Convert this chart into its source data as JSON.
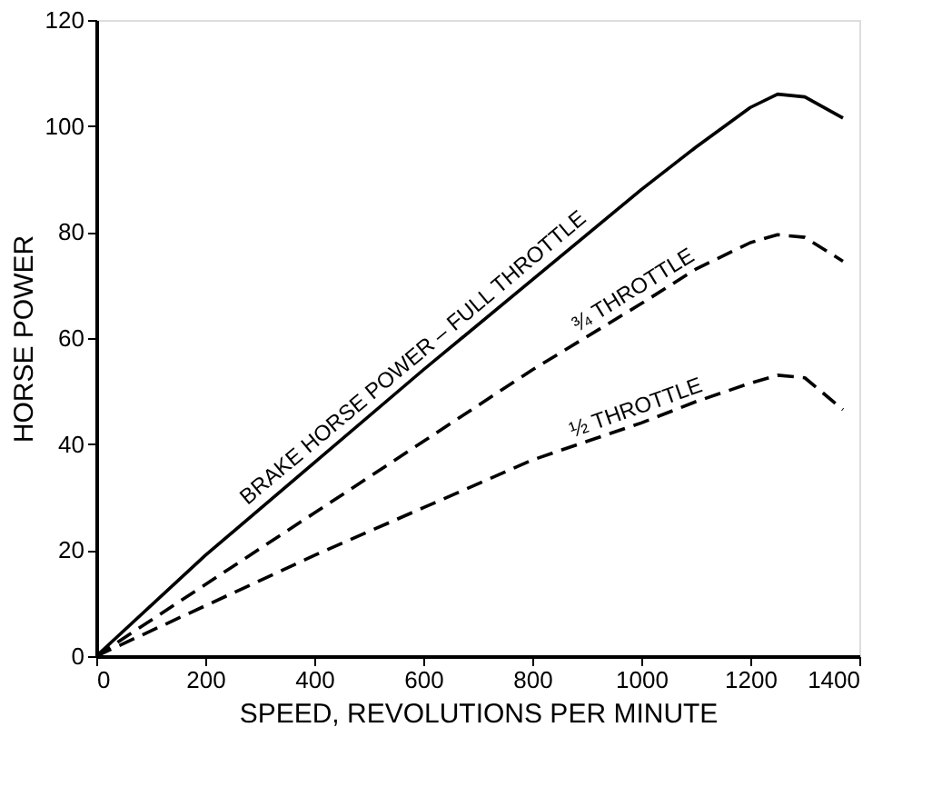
{
  "chart_data": {
    "type": "line",
    "xlabel": "SPEED, REVOLUTIONS PER MINUTE",
    "ylabel": "HORSE POWER",
    "x": [
      0,
      200,
      400,
      600,
      800,
      1000,
      1100,
      1200,
      1250,
      1300,
      1370
    ],
    "series": [
      {
        "name": "BRAKE HORSE POWER – FULL THROTTLE",
        "color": "#000000",
        "line_style": "solid",
        "values": [
          0,
          19,
          36.5,
          54,
          71,
          88,
          96,
          103.5,
          106,
          105.5,
          101.5
        ]
      },
      {
        "name": "¾ THROTTLE",
        "color": "#000000",
        "line_style": "dashed",
        "values": [
          0,
          13.5,
          27,
          40.5,
          54,
          66.5,
          73,
          78,
          79.5,
          79,
          74.5
        ]
      },
      {
        "name": "½ THROTTLE",
        "color": "#000000",
        "line_style": "dashed",
        "values": [
          0,
          9.5,
          19,
          28,
          37,
          44,
          48,
          51.5,
          53,
          52.5,
          46.5
        ]
      }
    ],
    "xlim": [
      0,
      1400
    ],
    "xticks": [
      0,
      200,
      400,
      600,
      800,
      1000,
      1200,
      1400
    ],
    "ylim": [
      0,
      120
    ],
    "yticks": [
      0,
      20,
      40,
      60,
      80,
      100,
      120
    ],
    "grid": false,
    "marker": "none"
  }
}
